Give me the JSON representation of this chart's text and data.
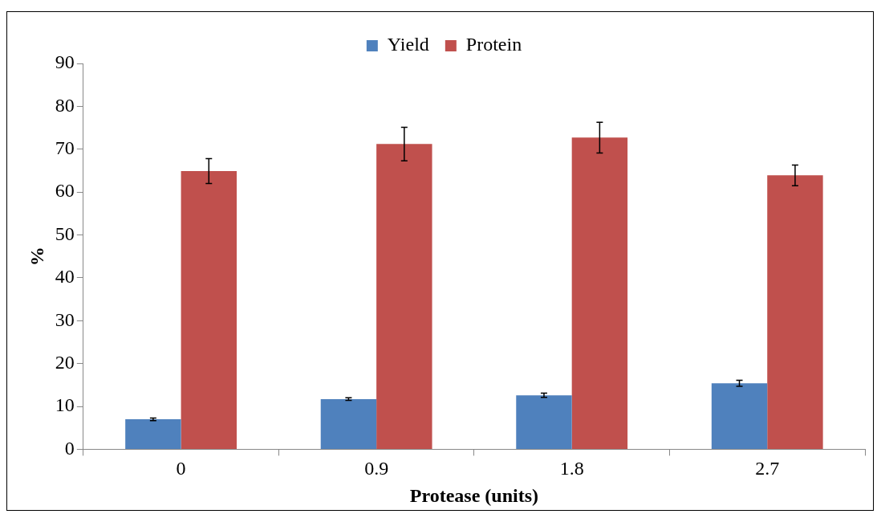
{
  "chart_data": {
    "type": "bar",
    "xlabel": "Protease (units)",
    "ylabel": "%",
    "categories": [
      "0",
      "0.9",
      "1.8",
      "2.7"
    ],
    "series": [
      {
        "name": "Yield",
        "color": "#4f81bd",
        "values": [
          7.0,
          11.7,
          12.6,
          15.4
        ],
        "errors": [
          0.3,
          0.3,
          0.5,
          0.7
        ]
      },
      {
        "name": "Protein",
        "color": "#c0504d",
        "values": [
          64.9,
          71.2,
          72.7,
          63.9
        ],
        "errors": [
          2.9,
          3.9,
          3.6,
          2.4
        ]
      }
    ],
    "ylim": [
      0,
      90
    ],
    "yticks": [
      0,
      10,
      20,
      30,
      40,
      50,
      60,
      70,
      80,
      90
    ],
    "grid": false,
    "legend": "top"
  }
}
